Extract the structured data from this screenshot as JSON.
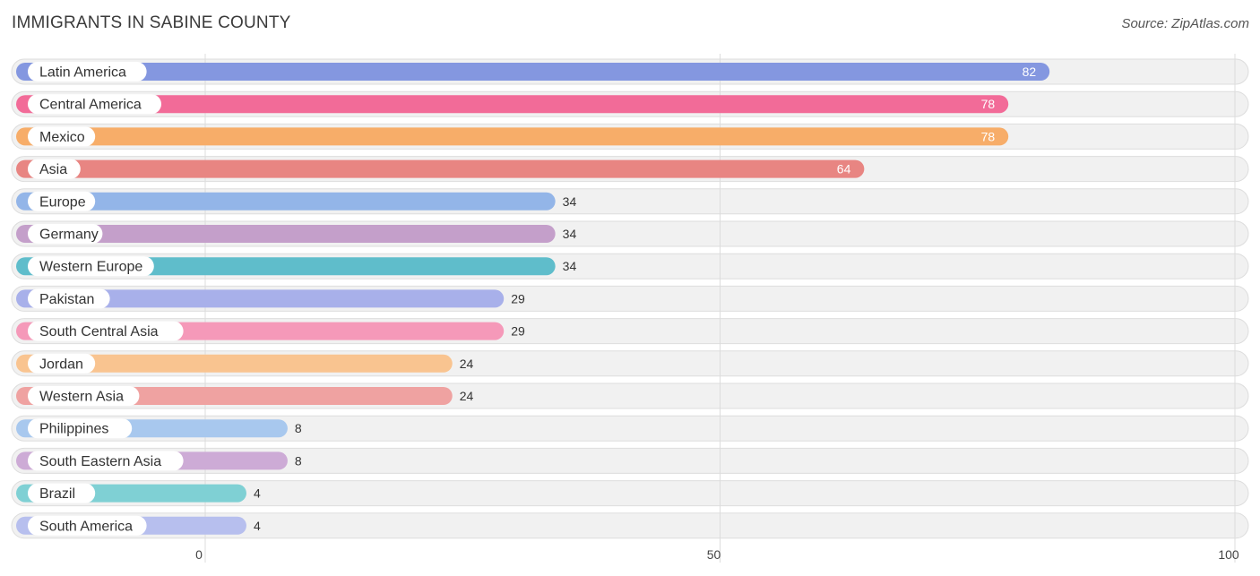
{
  "header": {
    "title": "IMMIGRANTS IN SABINE COUNTY",
    "source": "Source: ZipAtlas.com"
  },
  "chart_data": {
    "type": "bar",
    "orientation": "horizontal",
    "title": "IMMIGRANTS IN SABINE COUNTY",
    "xlabel": "",
    "ylabel": "",
    "xlim": [
      0,
      100
    ],
    "ticks": [
      0,
      50,
      100
    ],
    "grid": true,
    "categories": [
      "Latin America",
      "Central America",
      "Mexico",
      "Asia",
      "Europe",
      "Germany",
      "Western Europe",
      "Pakistan",
      "South Central Asia",
      "Jordan",
      "Western Asia",
      "Philippines",
      "South Eastern Asia",
      "Brazil",
      "South America"
    ],
    "values": [
      82,
      78,
      78,
      64,
      34,
      34,
      34,
      29,
      29,
      24,
      24,
      8,
      8,
      4,
      4
    ],
    "colors": [
      "#8497e0",
      "#f26b98",
      "#f7ad69",
      "#e88582",
      "#93b5e8",
      "#c49fca",
      "#5fbdcb",
      "#a8b0ea",
      "#f599b9",
      "#f9c490",
      "#efa2a1",
      "#a8c8ee",
      "#cdabd6",
      "#7fd0d4",
      "#b7bfee"
    ]
  }
}
